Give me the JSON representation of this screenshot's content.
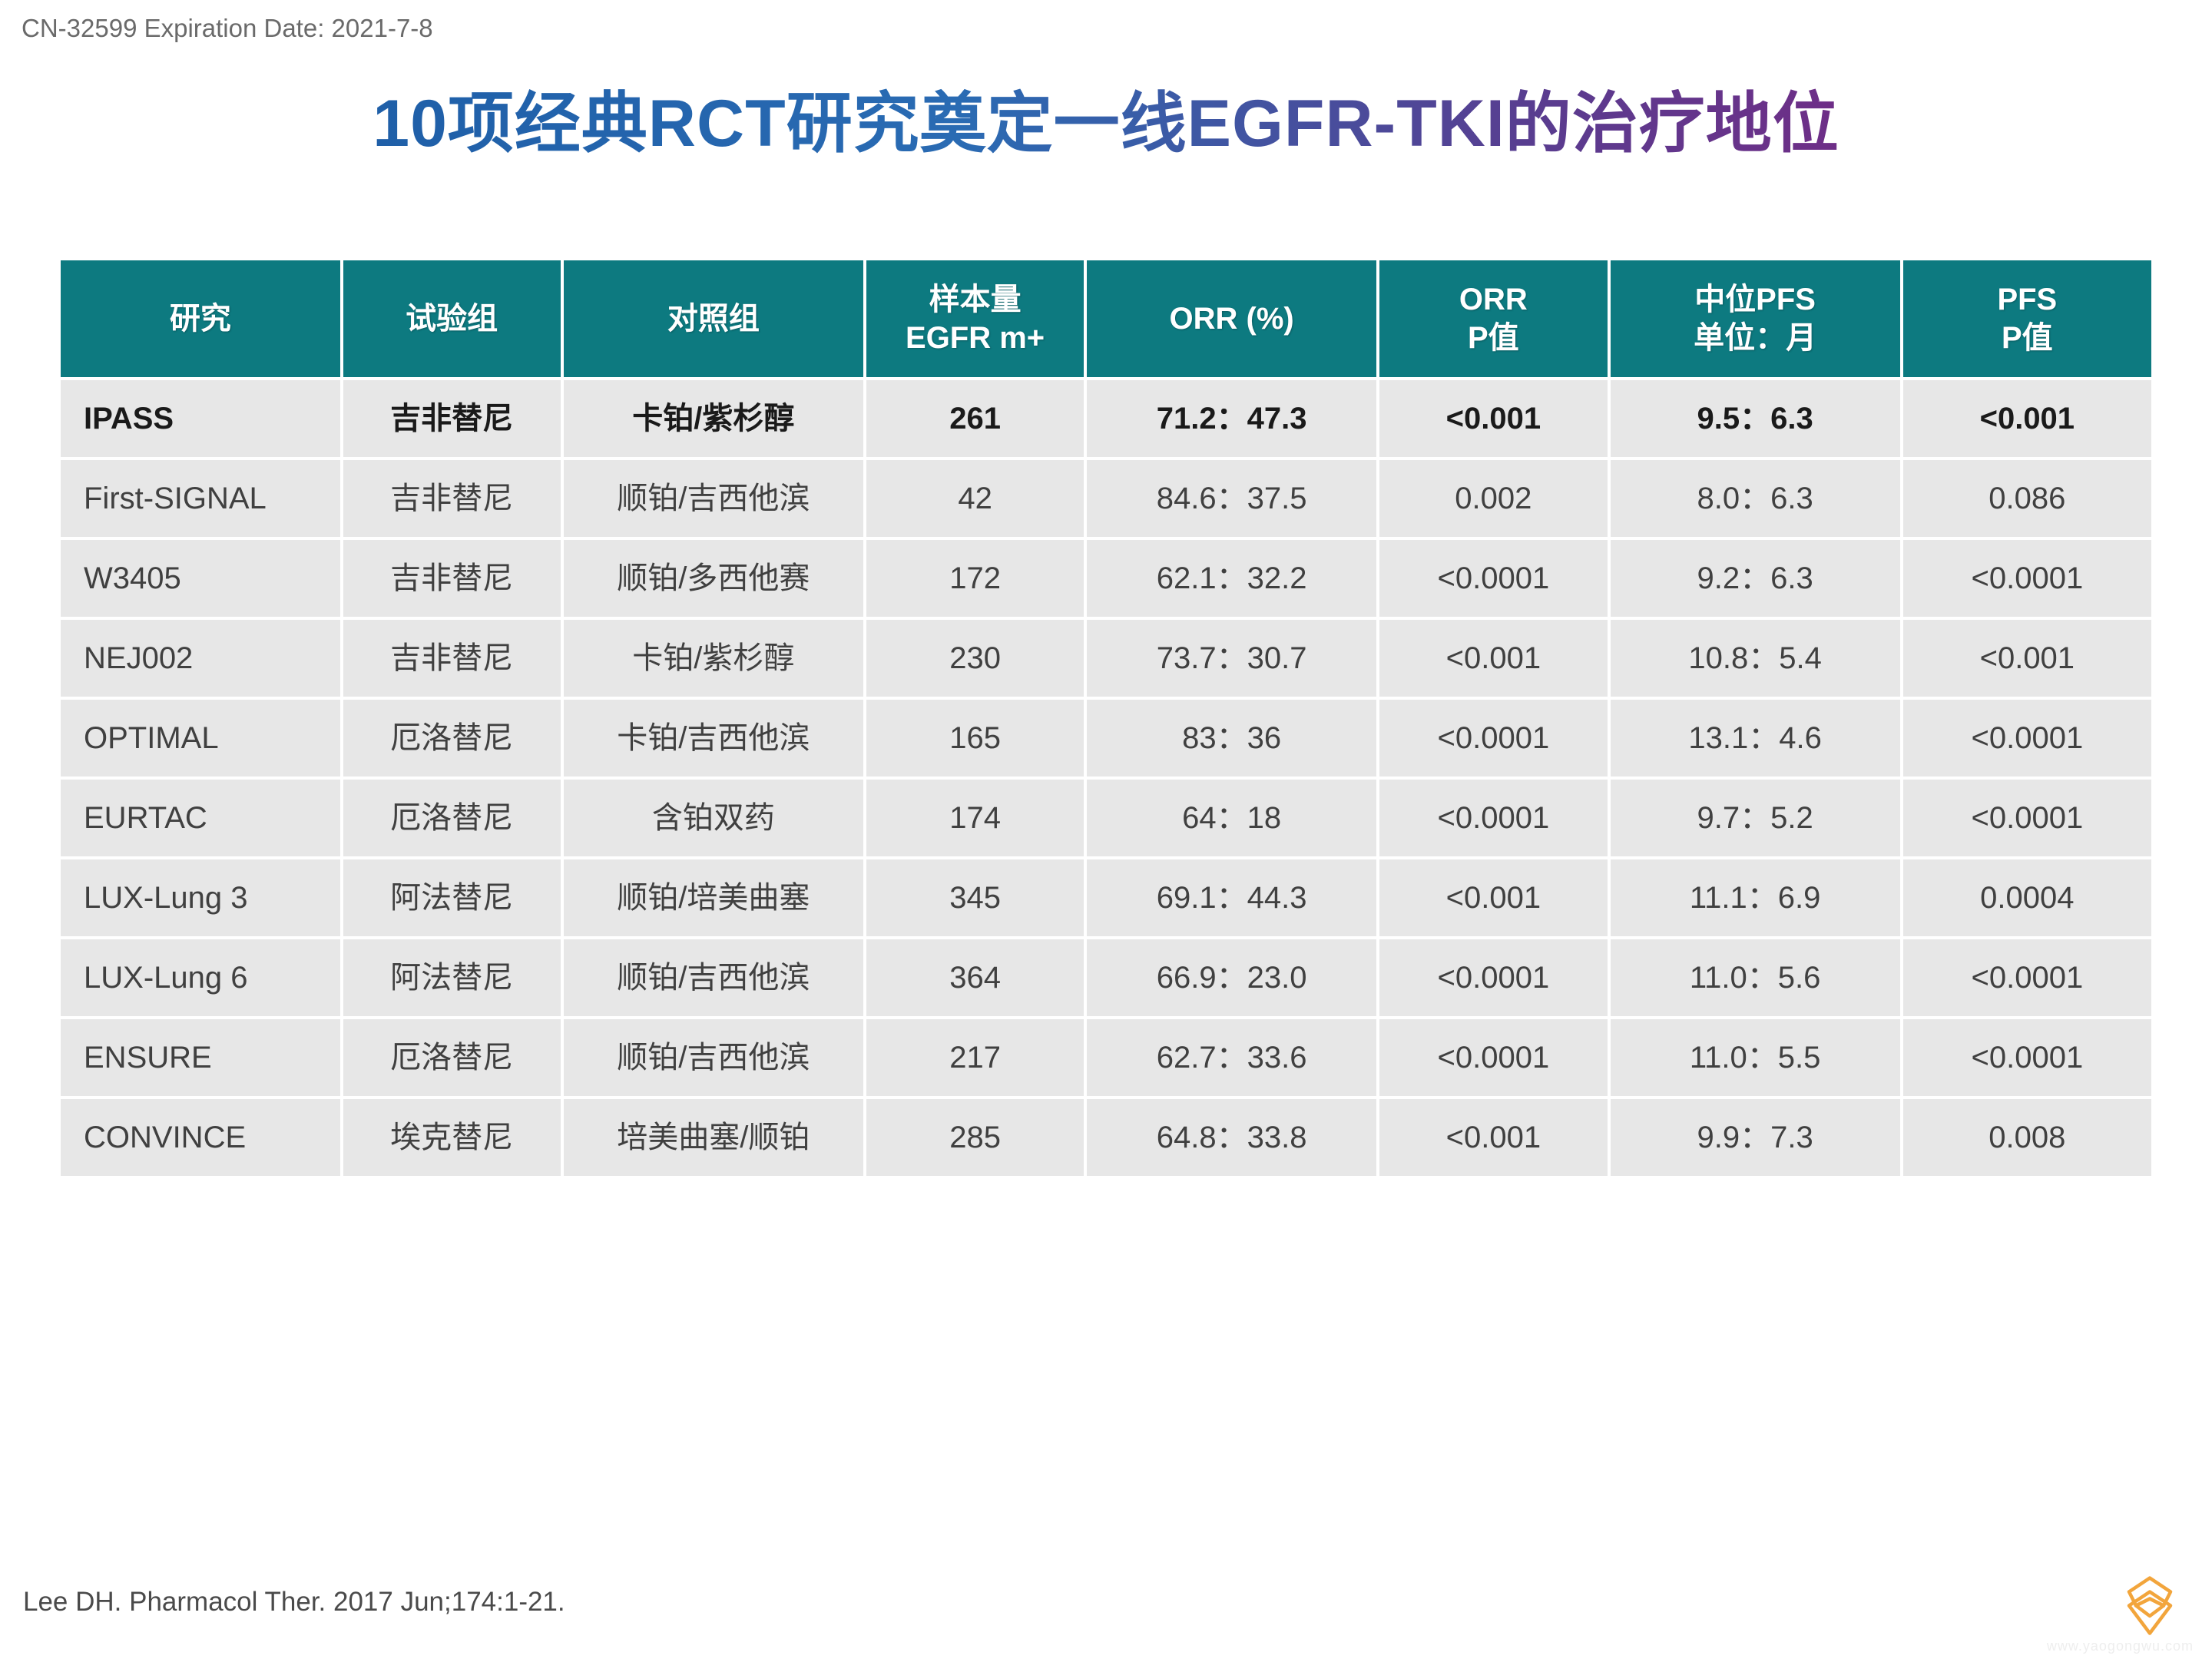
{
  "header": "CN-32599 Expiration Date: 2021-7-8",
  "title": "10项经典RCT研究奠定一线EGFR-TKI的治疗地位",
  "citation": "Lee DH. Pharmacol Ther. 2017 Jun;174:1-21.",
  "watermark": "www.yaogongwu.com",
  "table": {
    "header_bg": "#0d7a80",
    "header_fg": "#ffffff",
    "cell_bg": "#e7e7e7",
    "cell_fg": "#404040",
    "bold_row_index": 0,
    "columns": [
      "研究",
      "试验组",
      "对照组",
      "样本量\nEGFR m+",
      "ORR (%)",
      "ORR\nP值",
      "中位PFS\n单位：月",
      "PFS\nP值"
    ],
    "rows": [
      [
        "IPASS",
        "吉非替尼",
        "卡铂/紫杉醇",
        "261",
        "71.2：47.3",
        "<0.001",
        "9.5：6.3",
        "<0.001"
      ],
      [
        "First-SIGNAL",
        "吉非替尼",
        "顺铂/吉西他滨",
        "42",
        "84.6：37.5",
        "0.002",
        "8.0：6.3",
        "0.086"
      ],
      [
        "W3405",
        "吉非替尼",
        "顺铂/多西他赛",
        "172",
        "62.1：32.2",
        "<0.0001",
        "9.2：6.3",
        "<0.0001"
      ],
      [
        "NEJ002",
        "吉非替尼",
        "卡铂/紫杉醇",
        "230",
        "73.7：30.7",
        "<0.001",
        "10.8：5.4",
        "<0.001"
      ],
      [
        "OPTIMAL",
        "厄洛替尼",
        "卡铂/吉西他滨",
        "165",
        "83：36",
        "<0.0001",
        "13.1：4.6",
        "<0.0001"
      ],
      [
        "EURTAC",
        "厄洛替尼",
        "含铂双药",
        "174",
        "64：18",
        "<0.0001",
        "9.7：5.2",
        "<0.0001"
      ],
      [
        "LUX-Lung 3",
        "阿法替尼",
        "顺铂/培美曲塞",
        "345",
        "69.1：44.3",
        "<0.001",
        "11.1：6.9",
        "0.0004"
      ],
      [
        "LUX-Lung 6",
        "阿法替尼",
        "顺铂/吉西他滨",
        "364",
        "66.9：23.0",
        "<0.0001",
        "11.0：5.6",
        "<0.0001"
      ],
      [
        "ENSURE",
        "厄洛替尼",
        "顺铂/吉西他滨",
        "217",
        "62.7：33.6",
        "<0.0001",
        "11.0：5.5",
        "<0.0001"
      ],
      [
        "CONVINCE",
        "埃克替尼",
        "培美曲塞/顺铂",
        "285",
        "64.8：33.8",
        "<0.001",
        "9.9：7.3",
        "0.008"
      ]
    ]
  },
  "logo": {
    "stroke": "#f2a53c",
    "size": 90
  }
}
